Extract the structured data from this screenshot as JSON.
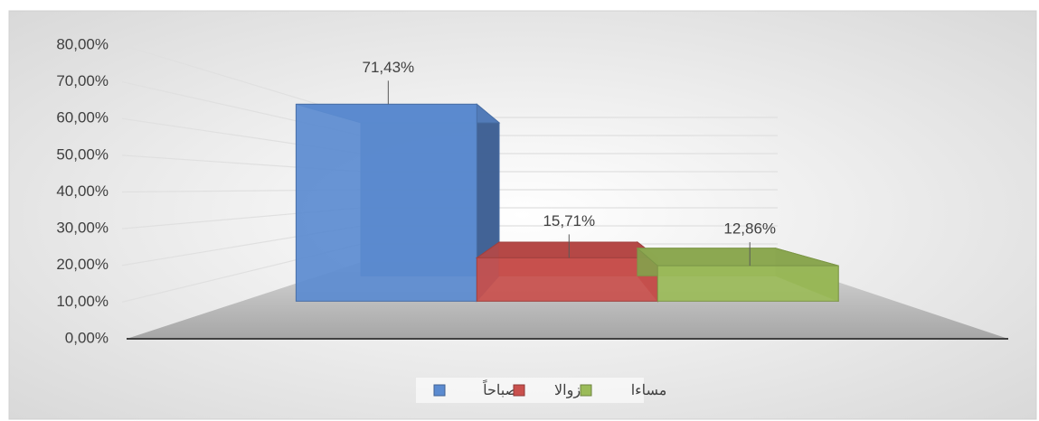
{
  "chart_data": {
    "type": "bar3d",
    "categories": [
      null
    ],
    "series": [
      {
        "name": "صباحاً",
        "color": "#5b8bd0",
        "values": [
          71.43
        ],
        "value_labels": [
          "71,43%"
        ]
      },
      {
        "name": "زوالا",
        "color": "#c9504d",
        "values": [
          15.71
        ],
        "value_labels": [
          "15,71%"
        ]
      },
      {
        "name": "مساءا",
        "color": "#9bbb59",
        "values": [
          12.86
        ],
        "value_labels": [
          "12,86%"
        ]
      }
    ],
    "ylim": [
      0,
      80
    ],
    "yticks": [
      {
        "value": 0,
        "label": "0,00%"
      },
      {
        "value": 10,
        "label": "10,00%"
      },
      {
        "value": 20,
        "label": "20,00%"
      },
      {
        "value": 30,
        "label": "30,00%"
      },
      {
        "value": 40,
        "label": "40,00%"
      },
      {
        "value": 50,
        "label": "50,00%"
      },
      {
        "value": 60,
        "label": "60,00%"
      },
      {
        "value": 70,
        "label": "70,00%"
      },
      {
        "value": 80,
        "label": "80,00%"
      }
    ],
    "grid": true,
    "legend": "bottom"
  }
}
